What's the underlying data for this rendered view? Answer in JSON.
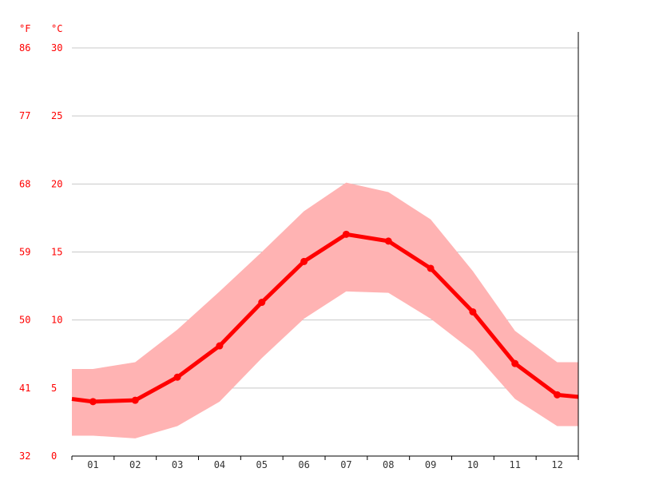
{
  "chart_data": {
    "type": "line",
    "units": {
      "fahrenheit": "°F",
      "celsius": "°C"
    },
    "categories": [
      "01",
      "02",
      "03",
      "04",
      "05",
      "06",
      "07",
      "08",
      "09",
      "10",
      "11",
      "12"
    ],
    "series": [
      {
        "values": [
          4.0,
          4.1,
          5.8,
          8.1,
          11.3,
          14.3,
          16.3,
          15.8,
          13.8,
          10.6,
          6.8,
          4.5
        ]
      }
    ],
    "band": {
      "upper": [
        6.4,
        6.9,
        9.3,
        12.1,
        15.0,
        18.0,
        20.1,
        19.4,
        17.4,
        13.6,
        9.2,
        6.9
      ],
      "lower": [
        1.5,
        1.3,
        2.2,
        4.0,
        7.2,
        10.1,
        12.1,
        12.0,
        10.1,
        7.7,
        4.2,
        2.2
      ]
    },
    "y_ticks_celsius": [
      "0",
      "5",
      "10",
      "15",
      "20",
      "25",
      "30"
    ],
    "y_ticks_fahrenheit": [
      "32",
      "41",
      "50",
      "59",
      "68",
      "77",
      "86"
    ],
    "ylim": [
      0,
      30
    ],
    "grid": true,
    "colors": {
      "line": "#ff0000",
      "band": "#ffb3b3",
      "axis": "#000000",
      "grid": "#c8c8c8",
      "labels": "#ff0000"
    }
  }
}
